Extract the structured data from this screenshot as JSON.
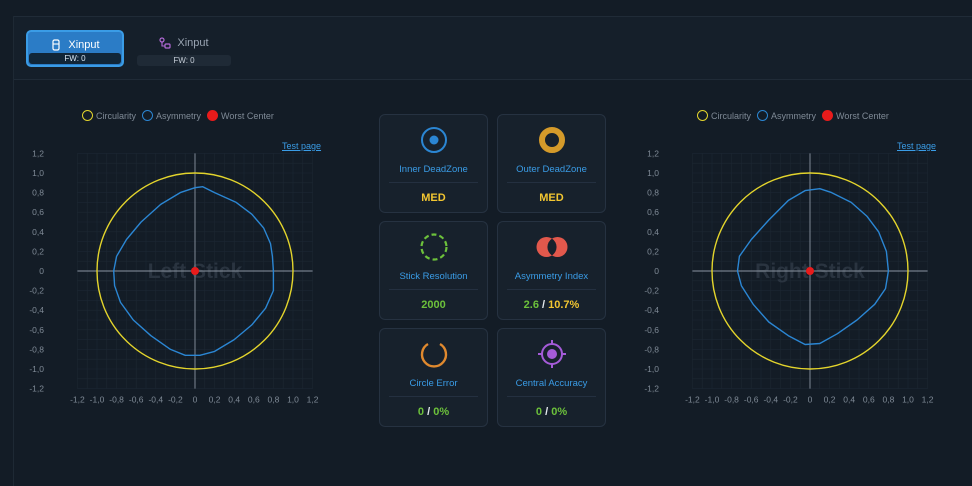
{
  "tabs": [
    {
      "label": "Xinput",
      "fw": "FW: 0",
      "active": true
    },
    {
      "label": "Xinput",
      "fw": "FW: 0",
      "active": false
    }
  ],
  "legend": {
    "circularity": "Circularity",
    "asymmetry": "Asymmetry",
    "worst_center": "Worst Center"
  },
  "colors": {
    "circularity": "#e3d42c",
    "asymmetry": "#2b86d3",
    "worst_center": "#e81b1b",
    "accent": "#3a9ce6"
  },
  "test_link": "Test page",
  "metrics": {
    "inner_deadzone": {
      "label": "Inner DeadZone",
      "value": "MED"
    },
    "outer_deadzone": {
      "label": "Outer DeadZone",
      "value": "MED"
    },
    "stick_resolution": {
      "label": "Stick Resolution",
      "value": "2000"
    },
    "asymmetry_index": {
      "label": "Asymmetry Index",
      "value_a": "2.6",
      "sep": "/",
      "value_b": "10.7%"
    },
    "circle_error": {
      "label": "Circle Error",
      "value_a": "0",
      "sep": "/",
      "value_b": "0%"
    },
    "central_accuracy": {
      "label": "Central Accuracy",
      "value_a": "0",
      "sep": "/",
      "value_b": "0%"
    }
  },
  "chart_data": [
    {
      "type": "scatter",
      "title": "Left Stick",
      "xlim": [
        -1.2,
        1.2
      ],
      "ylim": [
        -1.2,
        1.2
      ],
      "x_ticks": [
        "-1,2",
        "-1,0",
        "-0,8",
        "-0,6",
        "-0,4",
        "-0,2",
        "0",
        "0,2",
        "0,4",
        "0,6",
        "0,8",
        "1,0",
        "1,2"
      ],
      "y_ticks": [
        "1,2",
        "1,0",
        "0,8",
        "0,6",
        "0,4",
        "0,2",
        "0",
        "-0,2",
        "-0,4",
        "-0,6",
        "-0,8",
        "-1,0",
        "-1,2"
      ],
      "grid": true,
      "legend": "top",
      "circularity_radius": 1.0,
      "worst_center": [
        0,
        0
      ],
      "asymmetry_outline": [
        [
          0.8,
          0
        ],
        [
          0.79,
          0.15
        ],
        [
          0.77,
          0.28
        ],
        [
          0.7,
          0.44
        ],
        [
          0.58,
          0.58
        ],
        [
          0.42,
          0.7
        ],
        [
          0.2,
          0.8
        ],
        [
          0.08,
          0.86
        ],
        [
          0,
          0.85
        ],
        [
          -0.15,
          0.8
        ],
        [
          -0.35,
          0.68
        ],
        [
          -0.55,
          0.5
        ],
        [
          -0.7,
          0.32
        ],
        [
          -0.8,
          0.15
        ],
        [
          -0.83,
          0
        ],
        [
          -0.82,
          -0.15
        ],
        [
          -0.76,
          -0.32
        ],
        [
          -0.63,
          -0.5
        ],
        [
          -0.45,
          -0.66
        ],
        [
          -0.25,
          -0.8
        ],
        [
          -0.1,
          -0.86
        ],
        [
          0.05,
          -0.86
        ],
        [
          0.2,
          -0.82
        ],
        [
          0.4,
          -0.7
        ],
        [
          0.58,
          -0.55
        ],
        [
          0.72,
          -0.38
        ],
        [
          0.8,
          -0.2
        ],
        [
          0.8,
          0
        ]
      ]
    },
    {
      "type": "scatter",
      "title": "Right Stick",
      "xlim": [
        -1.2,
        1.2
      ],
      "ylim": [
        -1.2,
        1.2
      ],
      "x_ticks": [
        "-1,2",
        "-1,0",
        "-0,8",
        "-0,6",
        "-0,4",
        "-0,2",
        "0",
        "0,2",
        "0,4",
        "0,6",
        "0,8",
        "1,0",
        "1,2"
      ],
      "y_ticks": [
        "1,2",
        "1,0",
        "0,8",
        "0,6",
        "0,4",
        "0,2",
        "0",
        "-0,2",
        "-0,4",
        "-0,6",
        "-0,8",
        "-1,0",
        "-1,2"
      ],
      "grid": true,
      "legend": "top",
      "circularity_radius": 1.0,
      "worst_center": [
        0,
        0
      ],
      "asymmetry_outline": [
        [
          0.8,
          0
        ],
        [
          0.78,
          0.2
        ],
        [
          0.7,
          0.4
        ],
        [
          0.58,
          0.56
        ],
        [
          0.42,
          0.7
        ],
        [
          0.22,
          0.8
        ],
        [
          0.1,
          0.84
        ],
        [
          -0.05,
          0.82
        ],
        [
          -0.22,
          0.72
        ],
        [
          -0.42,
          0.52
        ],
        [
          -0.6,
          0.32
        ],
        [
          -0.72,
          0.15
        ],
        [
          -0.74,
          0
        ],
        [
          -0.7,
          -0.15
        ],
        [
          -0.58,
          -0.34
        ],
        [
          -0.42,
          -0.52
        ],
        [
          -0.22,
          -0.66
        ],
        [
          -0.05,
          -0.75
        ],
        [
          0.1,
          -0.74
        ],
        [
          0.28,
          -0.64
        ],
        [
          0.48,
          -0.5
        ],
        [
          0.66,
          -0.34
        ],
        [
          0.77,
          -0.18
        ],
        [
          0.8,
          0
        ]
      ]
    }
  ]
}
